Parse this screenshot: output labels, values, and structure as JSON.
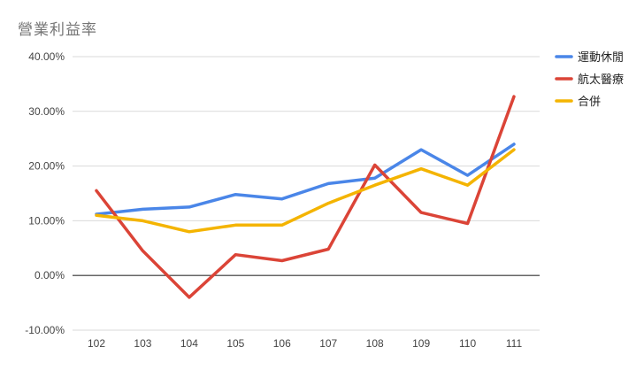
{
  "chart_data": {
    "type": "line",
    "title": "營業利益率",
    "xlabel": "",
    "ylabel": "",
    "categories": [
      "102",
      "103",
      "104",
      "105",
      "106",
      "107",
      "108",
      "109",
      "110",
      "111"
    ],
    "yticks": [
      "-10.00%",
      "0.00%",
      "10.00%",
      "20.00%",
      "30.00%",
      "40.00%"
    ],
    "ylim": [
      -10,
      40
    ],
    "grid": true,
    "legend_position": "right",
    "series": [
      {
        "name": "運動休閒",
        "color": "#4a86e8",
        "values": [
          11.2,
          12.1,
          12.5,
          14.8,
          14.0,
          16.8,
          17.8,
          23.0,
          18.3,
          24.0
        ]
      },
      {
        "name": "航太醫療",
        "color": "#db4437",
        "values": [
          15.5,
          4.5,
          -4.0,
          3.8,
          2.7,
          4.8,
          20.2,
          11.5,
          9.5,
          32.7
        ]
      },
      {
        "name": "合併",
        "color": "#f4b400",
        "values": [
          11.0,
          10.0,
          8.0,
          9.2,
          9.2,
          13.2,
          16.5,
          19.5,
          16.5,
          23.0
        ]
      }
    ]
  }
}
